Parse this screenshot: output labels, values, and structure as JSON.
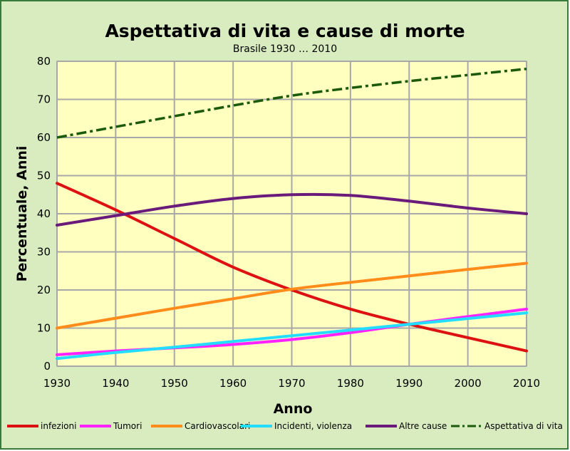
{
  "chart_data": {
    "type": "line",
    "title": "Aspettativa di vita e cause di morte",
    "subtitle": "Brasile 1930 … 2010",
    "xlabel": "Anno",
    "ylabel": "Percentuale, Anni",
    "xlim": [
      1930,
      2010
    ],
    "ylim": [
      0,
      80
    ],
    "x_ticks": [
      1930,
      1940,
      1950,
      1960,
      1970,
      1980,
      1990,
      2000,
      2010
    ],
    "y_ticks": [
      0,
      10,
      20,
      30,
      40,
      50,
      60,
      70,
      80
    ],
    "grid": true,
    "legend_position": "bottom",
    "plot_background": "#ffffc0",
    "chart_background": "#d8ecc0",
    "series": [
      {
        "name": "infezioni",
        "color": "#dd1111",
        "style": "solid",
        "x": [
          1930,
          1940,
          1950,
          1960,
          1970,
          1980,
          1990,
          2000,
          2010
        ],
        "values": [
          48,
          41,
          33.5,
          26,
          20,
          15,
          11,
          7.5,
          4
        ]
      },
      {
        "name": "Tumori",
        "color": "#ff22ff",
        "style": "solid",
        "x": [
          1930,
          1940,
          1950,
          1960,
          1970,
          1980,
          1990,
          2000,
          2010
        ],
        "values": [
          3,
          4,
          4.8,
          5.7,
          7,
          8.8,
          11,
          13,
          15
        ]
      },
      {
        "name": "Cardiovascolari",
        "color": "#ff8c1a",
        "style": "solid",
        "x": [
          1930,
          1940,
          1950,
          1960,
          1970,
          1980,
          1990,
          2000,
          2010
        ],
        "values": [
          10,
          12.6,
          15.2,
          17.7,
          20.2,
          22,
          23.7,
          25.4,
          27
        ]
      },
      {
        "name": "Incidenti, violenza",
        "color": "#22ddff",
        "style": "solid",
        "x": [
          1930,
          1940,
          1950,
          1960,
          1970,
          1980,
          1990,
          2000,
          2010
        ],
        "values": [
          2,
          3.6,
          5,
          6.5,
          8,
          9.5,
          11,
          12.5,
          14
        ]
      },
      {
        "name": "Altre cause",
        "color": "#6a1a7a",
        "style": "solid",
        "x": [
          1930,
          1940,
          1950,
          1960,
          1970,
          1980,
          1990,
          2000,
          2010
        ],
        "values": [
          37,
          39.5,
          42,
          44,
          45,
          44.8,
          43.3,
          41.5,
          40
        ]
      },
      {
        "name": "Aspettativa di vita",
        "color": "#1a5a0a",
        "style": "dashdot",
        "x": [
          1930,
          1940,
          1950,
          1960,
          1970,
          1980,
          1990,
          2000,
          2010
        ],
        "values": [
          60,
          62.8,
          65.6,
          68.4,
          71,
          73,
          74.8,
          76.4,
          78
        ]
      }
    ]
  }
}
